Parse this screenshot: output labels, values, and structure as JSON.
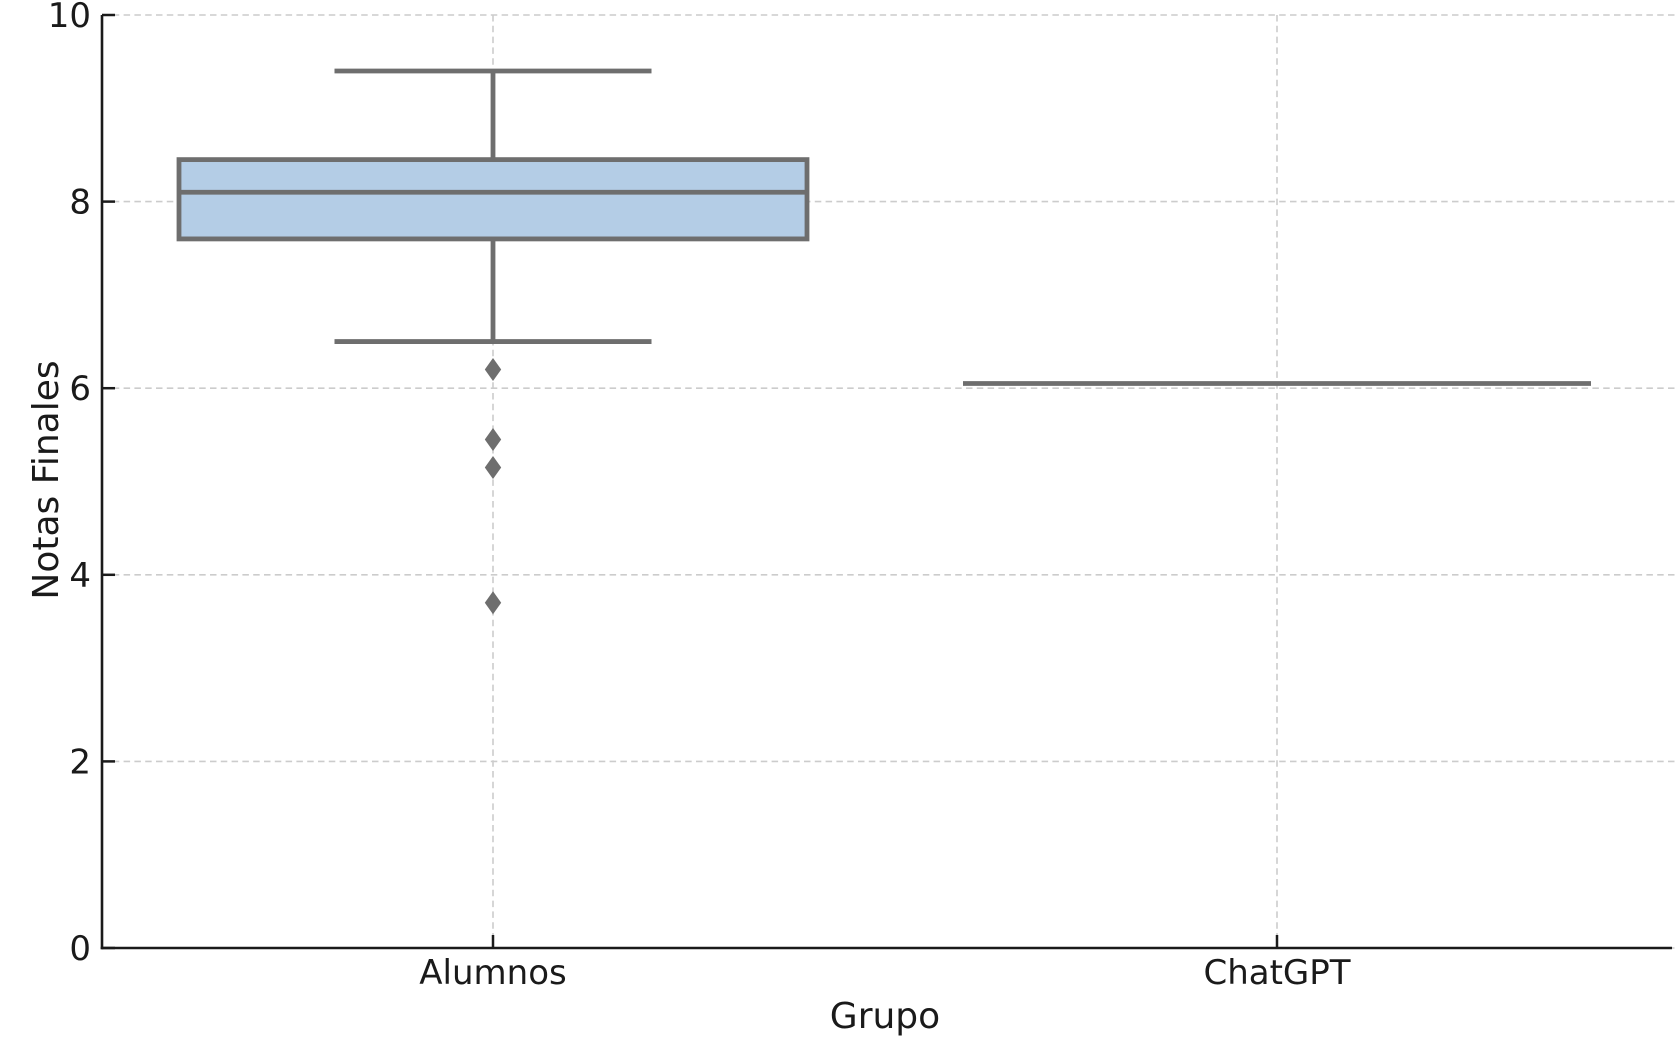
{
  "figure": {
    "background": "#ffffff"
  },
  "chart_data": {
    "type": "boxplot",
    "title": "",
    "xlabel": "Grupo",
    "ylabel": "Notas Finales",
    "categories": [
      "Alumnos",
      "ChatGPT"
    ],
    "ylim": [
      0,
      10
    ],
    "yticks": [
      0,
      2,
      4,
      6,
      8,
      10
    ],
    "ytick_labels": [
      "0",
      "2",
      "4",
      "6",
      "8",
      "10"
    ],
    "grid": {
      "horizontal": "dashed at each y tick",
      "vertical": "dashed at each category center",
      "style": "dashed"
    },
    "legend": "none",
    "groups": [
      {
        "name": "Alumnos",
        "whisker_low": 6.5,
        "q1": 7.6,
        "median": 8.1,
        "q3": 8.45,
        "whisker_high": 9.4,
        "outliers": [
          6.2,
          5.45,
          5.15,
          3.7
        ]
      },
      {
        "name": "ChatGPT",
        "whisker_low": 6.05,
        "q1": 6.05,
        "median": 6.05,
        "q3": 6.05,
        "whisker_high": 6.05,
        "outliers": []
      }
    ],
    "colors": {
      "box_fill": "#b4cde6",
      "box_edge": "#6e6e6e",
      "whisker": "#6e6e6e",
      "median": "#6e6e6e",
      "outlier": "#6e6e6e",
      "grid": "#cccccc",
      "axis": "#1a1a1a",
      "text": "#1a1a1a"
    }
  }
}
